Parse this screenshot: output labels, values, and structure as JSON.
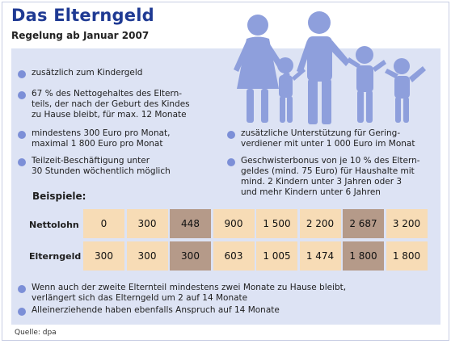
{
  "header": {
    "title": "Das Elterngeld",
    "subtitle": "Regelung ab Januar 2007"
  },
  "bullets_left": [
    {
      "lines": [
        "zusätzlich zum Kindergeld"
      ]
    },
    {
      "lines": [
        "67 % des Nettogehaltes des Eltern-",
        "teils, der nach der Geburt des Kindes",
        "zu Hause bleibt, für max. 12 Monate"
      ]
    },
    {
      "lines": [
        "mindestens 300 Euro pro Monat,",
        "maximal 1 800 Euro pro Monat"
      ]
    },
    {
      "lines": [
        "Teilzeit-Beschäftigung unter",
        "30 Stunden wöchentlich möglich"
      ]
    }
  ],
  "bullets_right": [
    {
      "lines": [
        "zusätzliche Unterstützung für Gering-",
        "verdiener mit unter 1 000 Euro im Monat"
      ]
    },
    {
      "lines": [
        "Geschwisterbonus von je 10 % des Eltern-",
        "geldes (mind. 75 Euro) für Haushalte mit",
        "mind. 2 Kindern unter 3 Jahren oder 3",
        "und mehr Kindern unter 6 Jahren"
      ]
    }
  ],
  "examples": {
    "label": "Beispiele:",
    "rows": [
      {
        "label": "Nettolohn",
        "values": [
          "0",
          "300",
          "448",
          "900",
          "1 500",
          "2 200",
          "2 687",
          "3 200"
        ]
      },
      {
        "label": "Elterngeld",
        "values": [
          "300",
          "300",
          "300",
          "603",
          "1 005",
          "1 474",
          "1 800",
          "1 800"
        ]
      }
    ]
  },
  "bullets_bottom": [
    {
      "lines": [
        "Wenn auch der zweite Elternteil mindestens zwei Monate zu Hause bleibt,",
        "verlängert sich das Elterngeld um 2 auf 14 Monate"
      ]
    },
    {
      "lines": [
        "Alleinerziehende haben ebenfalls Anspruch auf 14 Monate"
      ]
    }
  ],
  "source": "Quelle: dpa",
  "colors": {
    "title": "#1f3a93",
    "panel": "#dde3f4",
    "bullet": "#7c8fd7",
    "cell_light": "#f7dcb6",
    "cell_dark": "#b59a89",
    "family": "#8e9fdc"
  }
}
